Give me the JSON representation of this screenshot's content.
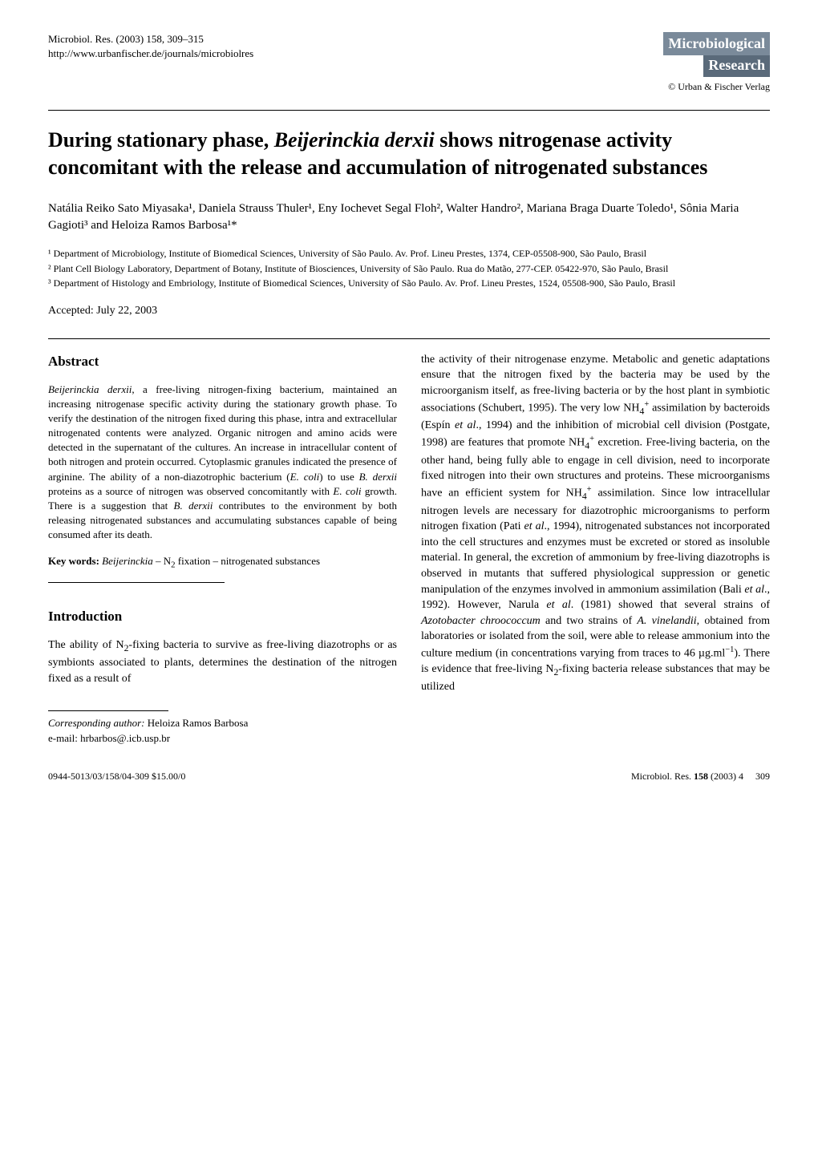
{
  "header": {
    "journal_ref": "Microbiol. Res. (2003) 158, 309–315",
    "url": "http://www.urbanfischer.de/journals/microbiolres",
    "journal_name_top": "Microbiological",
    "journal_name_bottom": "Research",
    "publisher": "© Urban & Fischer Verlag"
  },
  "title": "During stationary phase, Beijerinckia derxii shows nitrogenase activity concomitant with the release and accumulation of nitrogenated substances",
  "authors": "Natália Reiko Sato Miyasaka¹, Daniela Strauss Thuler¹, Eny Iochevet Segal Floh², Walter Handro², Mariana Braga Duarte Toledo¹, Sônia Maria Gagioti³ and Heloiza Ramos Barbosa¹*",
  "affiliations": [
    "¹ Department of Microbiology, Institute of Biomedical Sciences, University of São Paulo. Av. Prof. Lineu Prestes, 1374, CEP-05508-900, São Paulo, Brasil",
    "² Plant Cell Biology Laboratory, Department of Botany, Institute of Biosciences, University of São Paulo. Rua do Matão, 277-CEP. 05422-970, São Paulo, Brasil",
    "³ Department of Histology and Embriology, Institute of Biomedical Sciences, University of São Paulo. Av. Prof. Lineu Prestes, 1524, 05508-900, São Paulo, Brasil"
  ],
  "accepted": "Accepted: July 22, 2003",
  "abstract": {
    "heading": "Abstract",
    "text": "Beijerinckia derxii, a free-living nitrogen-fixing bacterium, maintained an increasing nitrogenase specific activity during the stationary growth phase. To verify the destination of the nitrogen fixed during this phase, intra and extracellular nitrogenated contents were analyzed. Organic nitrogen and amino acids were detected in the supernatant of the cultures. An increase in intracellular content of both nitrogen and protein occurred. Cytoplasmic granules indicated the presence of arginine. The ability of a non-diazotrophic bacterium (E. coli) to use B. derxii proteins as a source of nitrogen was observed concomitantly with E. coli growth. There is a suggestion that B. derxii contributes to the environment by both releasing nitrogenated substances and accumulating substances capable of being consumed after its death.",
    "keywords_label": "Key words:",
    "keywords": "Beijerinckia – N₂ fixation – nitrogenated substances"
  },
  "introduction": {
    "heading": "Introduction",
    "col1": "The ability of N₂-fixing bacteria to survive as free-living diazotrophs or as symbionts associated to plants, determines the destination of the nitrogen fixed as a result of",
    "col2": "the activity of their nitrogenase enzyme. Metabolic and genetic adaptations ensure that the nitrogen fixed by the bacteria may be used by the microorganism itself, as free-living bacteria or by the host plant in symbiotic associations (Schubert, 1995). The very low NH₄⁺ assimilation by bacteroids (Espín et al., 1994) and the inhibition of microbial cell division (Postgate, 1998) are features that promote NH₄⁺ excretion. Free-living bacteria, on the other hand, being fully able to engage in cell division, need to incorporate fixed nitrogen into their own structures and proteins. These microorganisms have an efficient system for NH₄⁺ assimilation. Since low intracellular nitrogen levels are necessary for diazotrophic microorganisms to perform nitrogen fixation (Pati et al., 1994), nitrogenated substances not incorporated into the cell structures and enzymes must be excreted or stored as insoluble material. In general, the excretion of ammonium by free-living diazotrophs is observed in mutants that suffered physiological suppression or genetic manipulation of the enzymes involved in ammonium assimilation (Bali et al., 1992). However, Narula et al. (1981) showed that several strains of Azotobacter chroococcum and two strains of A. vinelandii, obtained from laboratories or isolated from the soil, were able to release ammonium into the culture medium (in concentrations varying from traces to 46 µg.ml⁻¹). There is evidence that free-living N₂-fixing bacteria release substances that may be utilized"
  },
  "corresponding": {
    "label": "Corresponding author:",
    "name": "Heloiza Ramos Barbosa",
    "email_label": "e-mail:",
    "email": "hrbarbos@.icb.usp.br"
  },
  "footer": {
    "left": "0944-5013/03/158/04-309   $15.00/0",
    "right_journal": "Microbiol. Res. 158 (2003) 4",
    "page_num": "309"
  }
}
